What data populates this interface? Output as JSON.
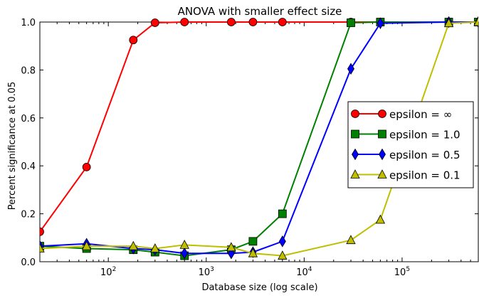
{
  "chart_data": {
    "type": "line",
    "title": "ANOVA with smaller effect size",
    "xlabel": "Database size (log scale)",
    "ylabel": "Percent significance at 0.05",
    "xscale": "log",
    "xlim": [
      20,
      600000
    ],
    "ylim": [
      0.0,
      1.0
    ],
    "x_ticks": [
      {
        "value": 100,
        "base": "10",
        "exp": "2"
      },
      {
        "value": 1000,
        "base": "10",
        "exp": "3"
      },
      {
        "value": 10000,
        "base": "10",
        "exp": "4"
      },
      {
        "value": 100000,
        "base": "10",
        "exp": "5"
      }
    ],
    "y_ticks": [
      "0.0",
      "0.2",
      "0.4",
      "0.6",
      "0.8",
      "1.0"
    ],
    "grid": false,
    "legend_position": "right",
    "series": [
      {
        "name": "epsilon = ∞",
        "color": "#ff0000",
        "marker": "circle",
        "points": [
          [
            20,
            0.125
          ],
          [
            60,
            0.395
          ],
          [
            180,
            0.925
          ],
          [
            300,
            0.997
          ],
          [
            600,
            1.0
          ],
          [
            1800,
            1.0
          ],
          [
            3000,
            1.0
          ],
          [
            6000,
            1.0
          ],
          [
            30000,
            1.0
          ],
          [
            60000,
            1.0
          ],
          [
            300000,
            1.0
          ],
          [
            600000,
            1.0
          ]
        ]
      },
      {
        "name": "epsilon = 1.0",
        "color": "#008000",
        "marker": "square",
        "points": [
          [
            20,
            0.065
          ],
          [
            60,
            0.055
          ],
          [
            180,
            0.05
          ],
          [
            300,
            0.04
          ],
          [
            600,
            0.025
          ],
          [
            1800,
            0.05
          ],
          [
            3000,
            0.085
          ],
          [
            6000,
            0.2
          ],
          [
            30000,
            0.997
          ],
          [
            60000,
            1.0
          ],
          [
            300000,
            1.0
          ],
          [
            600000,
            1.0
          ]
        ]
      },
      {
        "name": "epsilon = 0.5",
        "color": "#0000ff",
        "marker": "diamond",
        "points": [
          [
            20,
            0.065
          ],
          [
            60,
            0.075
          ],
          [
            180,
            0.055
          ],
          [
            300,
            0.05
          ],
          [
            600,
            0.035
          ],
          [
            1800,
            0.035
          ],
          [
            3000,
            0.04
          ],
          [
            6000,
            0.085
          ],
          [
            30000,
            0.805
          ],
          [
            60000,
            0.995
          ],
          [
            300000,
            1.0
          ],
          [
            600000,
            1.0
          ]
        ]
      },
      {
        "name": "epsilon = 0.1",
        "color": "#bfbf00",
        "marker": "triangle",
        "points": [
          [
            20,
            0.055
          ],
          [
            60,
            0.065
          ],
          [
            180,
            0.065
          ],
          [
            300,
            0.055
          ],
          [
            600,
            0.07
          ],
          [
            1800,
            0.06
          ],
          [
            3000,
            0.035
          ],
          [
            6000,
            0.025
          ],
          [
            30000,
            0.09
          ],
          [
            60000,
            0.175
          ],
          [
            300000,
            0.995
          ],
          [
            600000,
            1.0
          ]
        ]
      }
    ]
  }
}
